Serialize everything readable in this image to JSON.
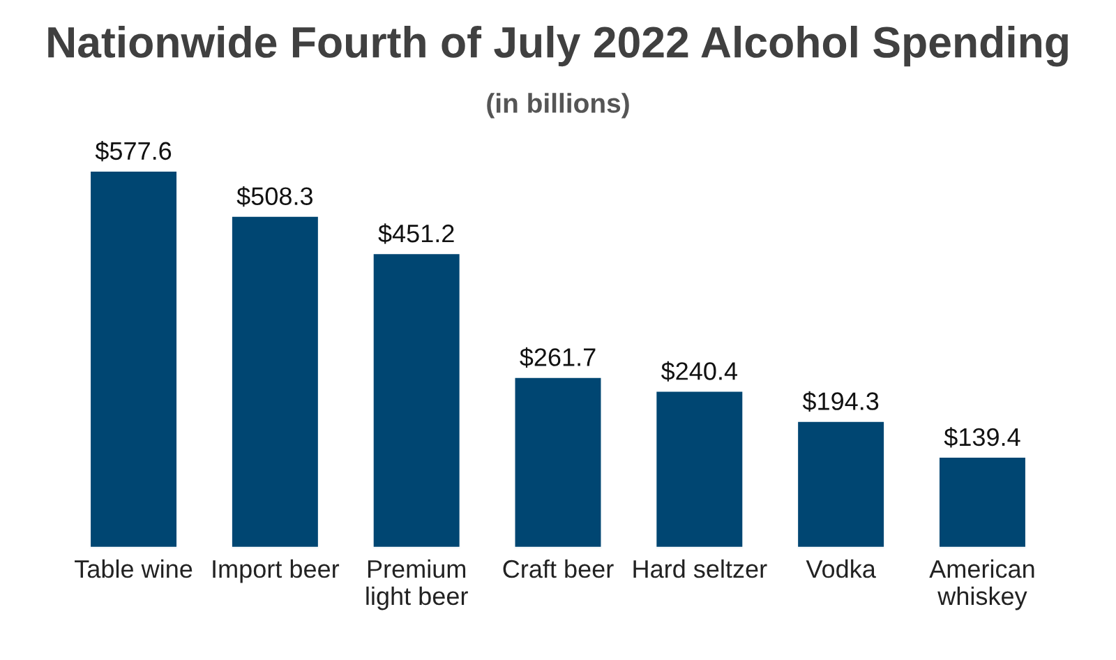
{
  "chart_data": {
    "type": "bar",
    "title": "Nationwide Fourth of July 2022 Alcohol Spending",
    "subtitle": "(in billions)",
    "categories": [
      "Table wine",
      "Import beer",
      "Premium\nlight beer",
      "Craft beer",
      "Hard seltzer",
      "Vodka",
      "American\nwhiskey"
    ],
    "values": [
      577.6,
      508.3,
      451.2,
      261.7,
      240.4,
      194.3,
      139.4
    ],
    "value_labels": [
      "$577.6",
      "$508.3",
      "$451.2",
      "$261.7",
      "$240.4",
      "$194.3",
      "$139.4"
    ],
    "color": "#004672",
    "grid": false,
    "legend": false
  }
}
